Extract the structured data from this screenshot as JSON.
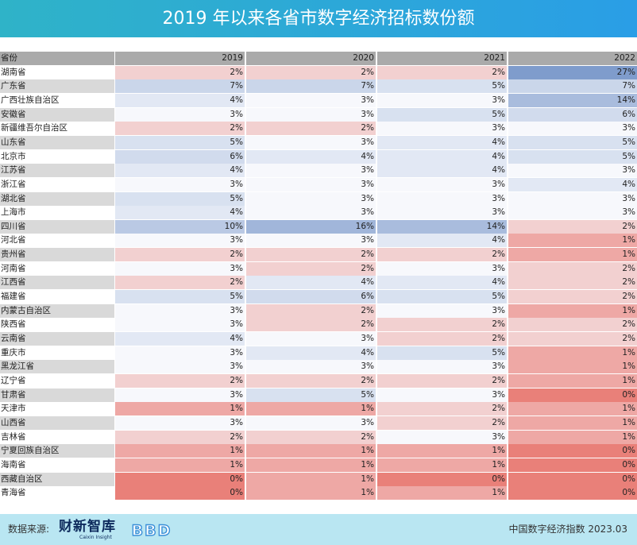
{
  "header": {
    "title": "2019 年以来各省市数字经济招标数份额"
  },
  "chart_data": {
    "type": "table",
    "title": "2019 年以来各省市数字经济招标数份额",
    "columns": [
      "省份",
      "2019",
      "2020",
      "2021",
      "2022"
    ],
    "unit": "%",
    "rows": [
      {
        "province": "湖南省",
        "values": [
          2,
          2,
          2,
          27
        ]
      },
      {
        "province": "广东省",
        "values": [
          7,
          7,
          5,
          7
        ]
      },
      {
        "province": "广西壮族自治区",
        "values": [
          4,
          3,
          3,
          14
        ]
      },
      {
        "province": "安徽省",
        "values": [
          3,
          3,
          5,
          6
        ]
      },
      {
        "province": "新疆维吾尔自治区",
        "values": [
          2,
          2,
          3,
          3
        ]
      },
      {
        "province": "山东省",
        "values": [
          5,
          3,
          4,
          5
        ]
      },
      {
        "province": "北京市",
        "values": [
          6,
          4,
          4,
          5
        ]
      },
      {
        "province": "江苏省",
        "values": [
          4,
          3,
          4,
          3
        ]
      },
      {
        "province": "浙江省",
        "values": [
          3,
          3,
          3,
          4
        ]
      },
      {
        "province": "湖北省",
        "values": [
          5,
          3,
          3,
          3
        ]
      },
      {
        "province": "上海市",
        "values": [
          4,
          3,
          3,
          3
        ]
      },
      {
        "province": "四川省",
        "values": [
          10,
          16,
          14,
          2
        ]
      },
      {
        "province": "河北省",
        "values": [
          3,
          3,
          4,
          1
        ]
      },
      {
        "province": "贵州省",
        "values": [
          2,
          2,
          2,
          1
        ]
      },
      {
        "province": "河南省",
        "values": [
          3,
          2,
          3,
          2
        ]
      },
      {
        "province": "江西省",
        "values": [
          2,
          4,
          4,
          2
        ]
      },
      {
        "province": "福建省",
        "values": [
          5,
          6,
          5,
          2
        ]
      },
      {
        "province": "内蒙古自治区",
        "values": [
          3,
          2,
          3,
          1
        ]
      },
      {
        "province": "陕西省",
        "values": [
          3,
          2,
          2,
          2
        ]
      },
      {
        "province": "云南省",
        "values": [
          4,
          3,
          2,
          2
        ]
      },
      {
        "province": "重庆市",
        "values": [
          3,
          4,
          5,
          1
        ]
      },
      {
        "province": "黑龙江省",
        "values": [
          3,
          3,
          3,
          1
        ]
      },
      {
        "province": "辽宁省",
        "values": [
          2,
          2,
          2,
          1
        ]
      },
      {
        "province": "甘肃省",
        "values": [
          3,
          5,
          3,
          0
        ]
      },
      {
        "province": "天津市",
        "values": [
          1,
          1,
          2,
          1
        ]
      },
      {
        "province": "山西省",
        "values": [
          3,
          3,
          2,
          1
        ]
      },
      {
        "province": "吉林省",
        "values": [
          2,
          2,
          3,
          1
        ]
      },
      {
        "province": "宁夏回族自治区",
        "values": [
          1,
          1,
          1,
          0
        ]
      },
      {
        "province": "海南省",
        "values": [
          1,
          1,
          1,
          0
        ]
      },
      {
        "province": "西藏自治区",
        "values": [
          0,
          1,
          0,
          0
        ]
      },
      {
        "province": "青海省",
        "values": [
          0,
          1,
          1,
          0
        ]
      }
    ]
  },
  "colors": {
    "high": "#7f9ccc",
    "mid": "#f7f8fc",
    "low": "#e98079",
    "label_band": "#d9d9d9",
    "header_band": "#aaaaaa",
    "footer_band": "#b9e6f2"
  },
  "footer": {
    "source_label": "数据来源:",
    "logo_main": "财新智库",
    "logo_sub": "Caixin Insight",
    "logo_bbd": "BBD",
    "right_text": "中国数字经济指数 2023.03"
  }
}
